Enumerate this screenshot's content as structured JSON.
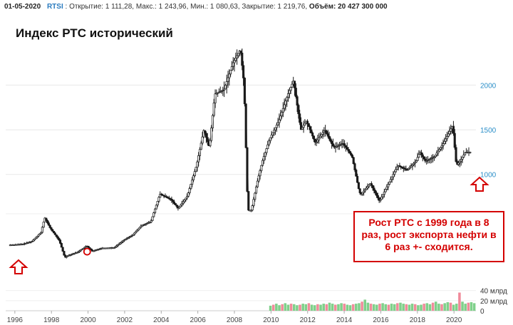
{
  "header": {
    "date": "01-05-2020",
    "ticker": "RTSI",
    "open": "Открытие: 1 111,28,",
    "high": "Макс.: 1 243,96,",
    "low": "Мин.: 1 080,63,",
    "close": "Закрытие: 1 219,76,",
    "volume": "Объём: 20 427 300 000"
  },
  "annotation": "Рост РТС с 1999 года в 8 раз, рост экспорта нефти в 6 раз +- сходится.",
  "colors": {
    "candle": "#1a1a1a",
    "arrow": "#d40000",
    "vol_up": "#7fd08a",
    "vol_down": "#f08a9a",
    "axis_label": "#2a8ec8"
  },
  "chart_data": {
    "type": "line",
    "title": "Индекс РТС исторический",
    "x_unit": "year",
    "x": [
      1995.75,
      1996.5,
      1997.0,
      1997.5,
      1997.7,
      1998.0,
      1998.5,
      1998.8,
      1999.0,
      1999.5,
      2000.0,
      2000.3,
      2000.8,
      2001.5,
      2002.0,
      2002.5,
      2003.0,
      2003.5,
      2004.0,
      2004.6,
      2005.0,
      2005.5,
      2006.0,
      2006.4,
      2006.7,
      2007.0,
      2007.5,
      2008.0,
      2008.4,
      2008.6,
      2008.8,
      2009.0,
      2009.3,
      2009.6,
      2010.0,
      2010.5,
      2011.0,
      2011.3,
      2011.7,
      2012.0,
      2012.5,
      2013.0,
      2013.5,
      2014.0,
      2014.5,
      2014.9,
      2015.0,
      2015.5,
      2016.0,
      2016.5,
      2017.0,
      2017.5,
      2018.0,
      2018.2,
      2018.5,
      2019.0,
      2019.5,
      2020.0,
      2020.2,
      2020.4,
      2020.7,
      2020.9
    ],
    "y": [
      210,
      220,
      250,
      350,
      515,
      400,
      260,
      70,
      95,
      130,
      200,
      140,
      175,
      180,
      260,
      320,
      430,
      470,
      780,
      720,
      620,
      760,
      1100,
      1500,
      1300,
      1900,
      1950,
      2250,
      2400,
      2000,
      600,
      600,
      900,
      1150,
      1400,
      1600,
      1900,
      2050,
      1500,
      1600,
      1350,
      1500,
      1300,
      1350,
      1200,
      800,
      780,
      900,
      700,
      900,
      1100,
      1050,
      1150,
      1250,
      1150,
      1200,
      1350,
      1550,
      1100,
      1150,
      1250,
      1250
    ],
    "ylim": [
      0,
      2650
    ],
    "xlim": [
      1995.5,
      2021.2
    ],
    "y_ticks": [
      {
        "value": 1000,
        "label": "1000"
      },
      {
        "value": 1500,
        "label": "1500"
      },
      {
        "value": 2000,
        "label": "2000"
      }
    ],
    "x_ticks": [
      {
        "value": 1996,
        "label": "1996"
      },
      {
        "value": 1998,
        "label": "1998"
      },
      {
        "value": 2000,
        "label": "2000"
      },
      {
        "value": 2002,
        "label": "2002"
      },
      {
        "value": 2004,
        "label": "2004"
      },
      {
        "value": 2006,
        "label": "2006"
      },
      {
        "value": 2008,
        "label": "2008"
      },
      {
        "value": 2010,
        "label": "2010"
      },
      {
        "value": 2012,
        "label": "2012"
      },
      {
        "value": 2014,
        "label": "2014"
      },
      {
        "value": 2016,
        "label": "2016"
      },
      {
        "value": 2018,
        "label": "2018"
      },
      {
        "value": 2020,
        "label": "2020"
      }
    ],
    "volume": {
      "unit": "млрд",
      "start_year": 2009.9,
      "values": [
        10,
        12,
        14,
        11,
        13,
        15,
        12,
        14,
        13,
        11,
        12,
        14,
        13,
        15,
        12,
        11,
        13,
        12,
        14,
        13,
        16,
        14,
        12,
        13,
        15,
        14,
        12,
        11,
        13,
        14,
        15,
        18,
        22,
        16,
        14,
        13,
        12,
        14,
        15,
        13,
        12,
        14,
        13,
        15,
        16,
        14,
        13,
        12,
        14,
        13,
        11,
        12,
        14,
        15,
        13,
        16,
        18,
        14,
        13,
        15,
        17,
        16,
        12,
        14,
        36,
        18,
        14,
        16,
        17,
        15
      ],
      "ylim": [
        0,
        48
      ],
      "ticks": [
        {
          "value": 40,
          "label": "40 млрд"
        },
        {
          "value": 20,
          "label": "20 млрд"
        },
        {
          "value": 0,
          "label": "0"
        }
      ]
    }
  }
}
